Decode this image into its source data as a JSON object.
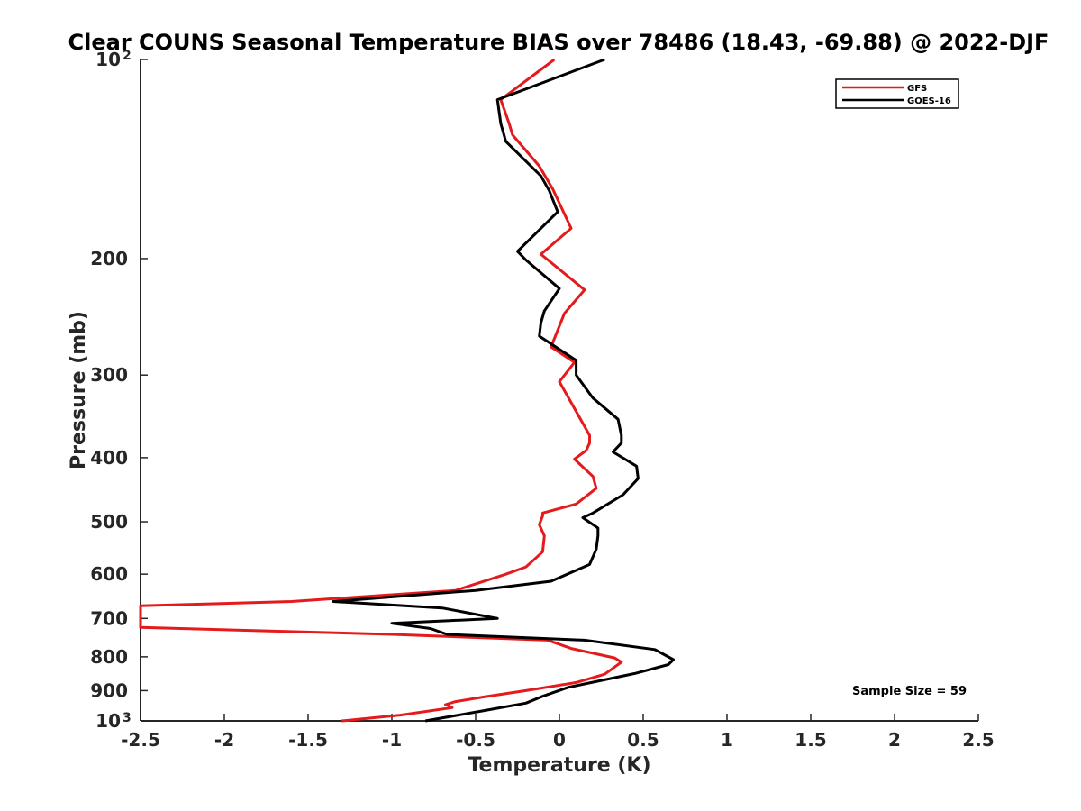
{
  "chart_data": {
    "type": "line",
    "title": "Clear COUNS Seasonal Temperature BIAS over 78486 (18.43, -69.88) @ 2022-DJF",
    "xlabel": "Temperature (K)",
    "ylabel": "Pressure (mb)",
    "xlim": [
      -2.5,
      2.5
    ],
    "ylim": [
      100,
      1000
    ],
    "y_scale": "log",
    "y_reversed": true,
    "x_ticks": [
      "-2.5",
      "-2",
      "-1.5",
      "-1",
      "-0.5",
      "0",
      "0.5",
      "1",
      "1.5",
      "2",
      "2.5"
    ],
    "y_ticks": [
      {
        "value": 100,
        "base": "10",
        "exp": "2"
      },
      {
        "value": 200,
        "label": "200"
      },
      {
        "value": 300,
        "label": "300"
      },
      {
        "value": 400,
        "label": "400"
      },
      {
        "value": 500,
        "label": "500"
      },
      {
        "value": 600,
        "label": "600"
      },
      {
        "value": 700,
        "label": "700"
      },
      {
        "value": 800,
        "label": "800"
      },
      {
        "value": 900,
        "label": "900"
      },
      {
        "value": 1000,
        "base": "10",
        "exp": "3"
      }
    ],
    "grid": false,
    "legend_position": "top-right",
    "annotation": "Sample Size = 59",
    "series": [
      {
        "name": "GFS",
        "color": "#e41a1c",
        "points": [
          [
            -0.03,
            100
          ],
          [
            -0.35,
            115
          ],
          [
            -0.3,
            125
          ],
          [
            -0.28,
            130
          ],
          [
            -0.12,
            145
          ],
          [
            -0.04,
            157
          ],
          [
            0.07,
            180
          ],
          [
            -0.11,
            197
          ],
          [
            0.15,
            223
          ],
          [
            0.03,
            242
          ],
          [
            -0.05,
            272
          ],
          [
            0.09,
            287
          ],
          [
            0.0,
            307
          ],
          [
            0.07,
            330
          ],
          [
            0.18,
            370
          ],
          [
            0.18,
            380
          ],
          [
            0.16,
            390
          ],
          [
            0.09,
            402
          ],
          [
            0.2,
            427
          ],
          [
            0.22,
            445
          ],
          [
            0.1,
            470
          ],
          [
            -0.1,
            485
          ],
          [
            -0.1,
            490
          ],
          [
            -0.12,
            505
          ],
          [
            -0.09,
            525
          ],
          [
            -0.1,
            555
          ],
          [
            -0.15,
            570
          ],
          [
            -0.2,
            585
          ],
          [
            -0.32,
            600
          ],
          [
            -0.62,
            635
          ],
          [
            -1.6,
            660
          ],
          [
            -2.5,
            670
          ],
          [
            -2.5,
            722
          ],
          [
            -1.0,
            740
          ],
          [
            -0.07,
            755
          ],
          [
            0.07,
            777
          ],
          [
            0.33,
            803
          ],
          [
            0.37,
            815
          ],
          [
            0.27,
            850
          ],
          [
            0.1,
            875
          ],
          [
            -0.2,
            900
          ],
          [
            -0.45,
            920
          ],
          [
            -0.62,
            935
          ],
          [
            -0.68,
            945
          ],
          [
            -0.64,
            955
          ],
          [
            -0.95,
            980
          ],
          [
            -1.3,
            1000
          ]
        ]
      },
      {
        "name": "GOES-16",
        "color": "#000000",
        "points": [
          [
            0.27,
            100
          ],
          [
            -0.37,
            115
          ],
          [
            -0.35,
            125
          ],
          [
            -0.32,
            133
          ],
          [
            -0.11,
            150
          ],
          [
            -0.06,
            158
          ],
          [
            -0.01,
            170
          ],
          [
            -0.25,
            195
          ],
          [
            -0.2,
            201
          ],
          [
            0.0,
            222
          ],
          [
            -0.09,
            240
          ],
          [
            -0.11,
            250
          ],
          [
            -0.12,
            262
          ],
          [
            0.1,
            285
          ],
          [
            0.1,
            300
          ],
          [
            0.2,
            325
          ],
          [
            0.35,
            350
          ],
          [
            0.37,
            370
          ],
          [
            0.37,
            380
          ],
          [
            0.32,
            392
          ],
          [
            0.46,
            412
          ],
          [
            0.47,
            430
          ],
          [
            0.38,
            455
          ],
          [
            0.2,
            485
          ],
          [
            0.14,
            493
          ],
          [
            0.23,
            511
          ],
          [
            0.23,
            525
          ],
          [
            0.22,
            550
          ],
          [
            0.18,
            580
          ],
          [
            -0.05,
            615
          ],
          [
            -0.5,
            635
          ],
          [
            -1.35,
            660
          ],
          [
            -0.7,
            675
          ],
          [
            -0.37,
            700
          ],
          [
            -1.0,
            712
          ],
          [
            -0.77,
            725
          ],
          [
            -0.67,
            740
          ],
          [
            0.15,
            755
          ],
          [
            0.57,
            780
          ],
          [
            0.68,
            808
          ],
          [
            0.65,
            822
          ],
          [
            0.45,
            848
          ],
          [
            0.05,
            890
          ],
          [
            -0.1,
            918
          ],
          [
            -0.2,
            940
          ],
          [
            -0.45,
            965
          ],
          [
            -0.8,
            1000
          ]
        ]
      }
    ]
  }
}
